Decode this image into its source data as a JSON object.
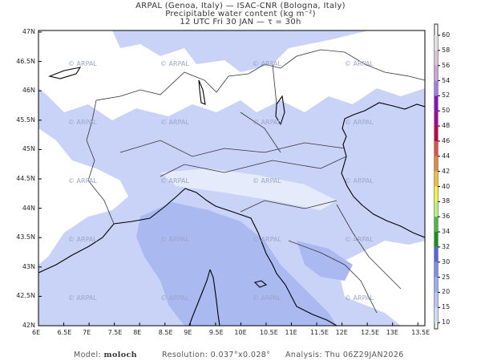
{
  "header": {
    "line1": "ARPAL (Genoa, Italy)  —  ISAC-CNR (Bologna, Italy)",
    "line2": "Precipitable water content (kg m⁻²)",
    "line3": "12 UTC Fri 30 JAN  —  τ = 30h"
  },
  "map": {
    "lat_labels": [
      "47N",
      "46.5N",
      "46N",
      "45.5N",
      "45N",
      "44.5N",
      "44N",
      "43.5N",
      "43N",
      "42.5N",
      "42N"
    ],
    "lon_labels": [
      "6E",
      "6.5E",
      "7E",
      "7.5E",
      "8E",
      "8.5E",
      "9E",
      "9.5E",
      "10E",
      "10.5E",
      "11E",
      "11.5E",
      "12E",
      "12.5E",
      "13E",
      "13.5E"
    ],
    "watermark": "© ARPAL",
    "colors": {
      "base": "#c9d3f7",
      "low": "#ffffff",
      "high": "#aab9f0",
      "coast": "#000000",
      "border": "#333333"
    }
  },
  "colorbar": {
    "labels": [
      "60",
      "58",
      "56",
      "54",
      "52",
      "50",
      "48",
      "46",
      "44",
      "42",
      "40",
      "38",
      "36",
      "34",
      "32",
      "30",
      "25",
      "20",
      "15",
      "10"
    ],
    "colors": [
      "#e4dde6",
      "#dcc0d4",
      "#c9a6d8",
      "#a27ee0",
      "#8a10c8",
      "#a8009c",
      "#c40040",
      "#e05048",
      "#e08a3c",
      "#f0be3c",
      "#f2f240",
      "#b8f07a",
      "#48b848",
      "#149414",
      "#5566e0",
      "#7890ea",
      "#98acf2",
      "#b6c4f8",
      "#d0daf9"
    ]
  },
  "footer": {
    "model_label": "Model:",
    "model_value": "moloch",
    "resolution": "Resolution: 0.037°x0.028°",
    "analysis": "Analysis: Thu 06Z29JAN2026"
  }
}
